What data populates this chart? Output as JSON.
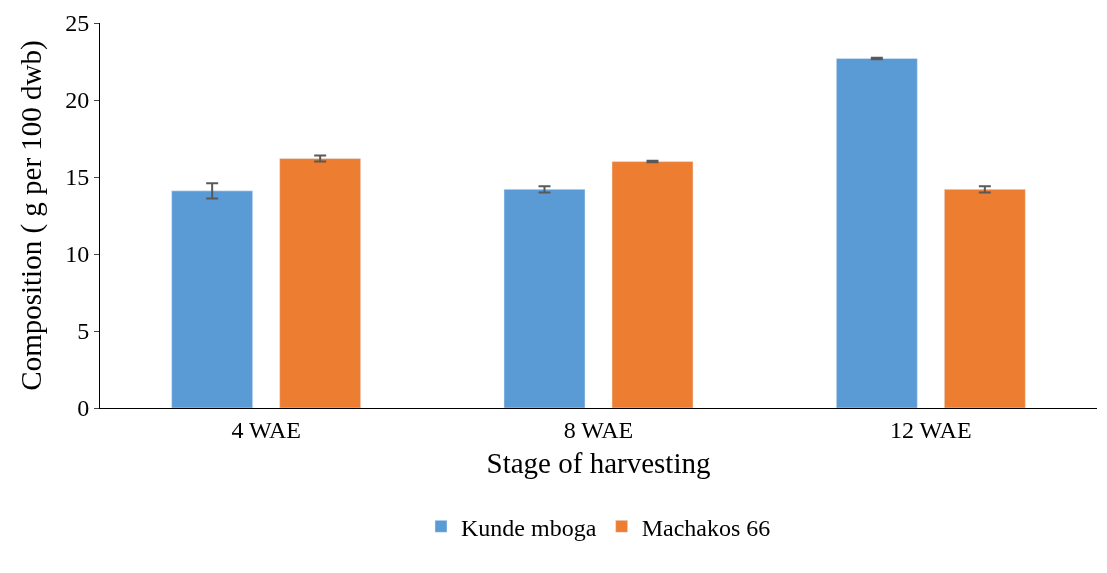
{
  "chart_data": {
    "type": "bar",
    "xlabel": "Stage of harvesting",
    "ylabel": "Composition ( g per 100 dwb)",
    "categories": [
      "4 WAE",
      "8 WAE",
      "12 WAE"
    ],
    "series": [
      {
        "name": "Kunde mboga",
        "color": "#5b9bd5",
        "values": [
          14.1,
          14.2,
          22.7
        ],
        "errors": [
          0.5,
          0.2,
          0.05
        ]
      },
      {
        "name": "Machakos 66",
        "color": "#ed7d31",
        "values": [
          16.2,
          16.0,
          14.2
        ],
        "errors": [
          0.2,
          0.05,
          0.2
        ]
      }
    ],
    "ylim": [
      0,
      25
    ],
    "yticks": [
      0,
      5,
      10,
      15,
      20,
      25
    ],
    "grid": false,
    "legend": "bottom"
  }
}
